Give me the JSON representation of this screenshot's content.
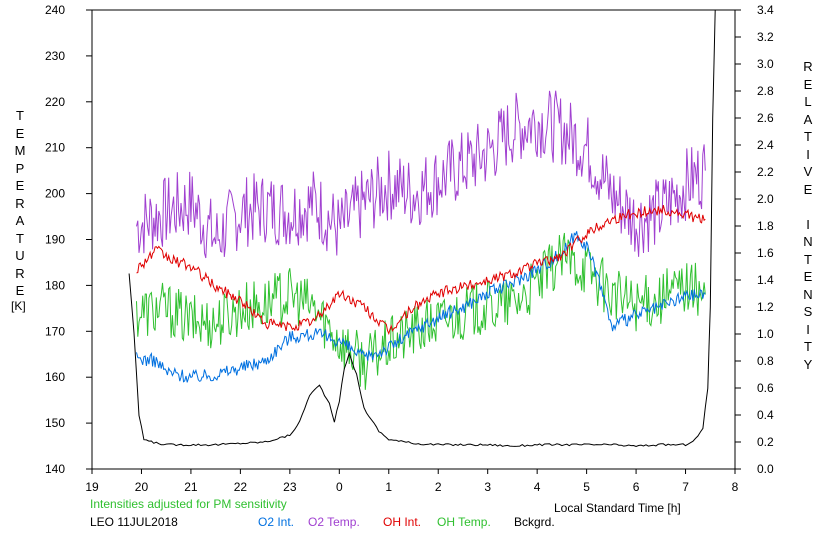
{
  "chart_data": {
    "type": "line",
    "ylabel_left": "TEMPERATURE",
    "ylabel_left_unit": "[K]",
    "ylabel_right": "RELATIVE INTENSITY",
    "xlabel": "Local Standard Time [h]",
    "note": "Intensities adjusted for PM sensitivity",
    "station": "LEO 11JUL2018",
    "ylim_left": [
      140,
      240
    ],
    "ylim_right": [
      0.0,
      3.4
    ],
    "x_range_hours": [
      19,
      32
    ],
    "x_tick_labels": [
      "19",
      "20",
      "21",
      "22",
      "23",
      "0",
      "1",
      "2",
      "3",
      "4",
      "5",
      "6",
      "7",
      "8"
    ],
    "y_left_ticks": [
      "140",
      "150",
      "160",
      "170",
      "180",
      "190",
      "200",
      "210",
      "220",
      "230",
      "240"
    ],
    "y_right_ticks": [
      "0.0",
      "0.2",
      "0.4",
      "0.6",
      "0.8",
      "1.0",
      "1.2",
      "1.4",
      "1.6",
      "1.8",
      "2.0",
      "2.2",
      "2.4",
      "2.6",
      "2.8",
      "3.0",
      "3.2",
      "3.4"
    ],
    "legend": [
      {
        "name": "O2 Int.",
        "color": "#0070e0"
      },
      {
        "name": "O2 Temp.",
        "color": "#a040d0"
      },
      {
        "name": "OH Int.",
        "color": "#e00000"
      },
      {
        "name": "OH Temp.",
        "color": "#30c030"
      },
      {
        "name": "Bckgrd.",
        "color": "#000000"
      }
    ],
    "series": [
      {
        "name": "O2 Temp.",
        "axis": "left",
        "color": "#a040d0",
        "x": [
          19.9,
          20.5,
          21.0,
          21.5,
          22.0,
          22.5,
          23.0,
          23.5,
          24.0,
          24.5,
          25.0,
          25.5,
          26.0,
          26.5,
          27.0,
          27.5,
          28.0,
          28.5,
          29.0,
          29.5,
          30.0,
          30.5,
          31.0,
          31.4
        ],
        "y": [
          193,
          196,
          198,
          190,
          196,
          197,
          196,
          198,
          192,
          198,
          202,
          200,
          203,
          206,
          209,
          214,
          216,
          214,
          210,
          200,
          194,
          196,
          202,
          205
        ]
      },
      {
        "name": "OH Temp.",
        "axis": "left",
        "color": "#30c030",
        "x": [
          19.9,
          20.5,
          21.0,
          21.5,
          22.0,
          22.5,
          23.0,
          23.5,
          24.0,
          24.5,
          25.0,
          25.5,
          26.0,
          26.5,
          27.0,
          27.5,
          28.0,
          28.5,
          29.0,
          29.5,
          30.0,
          30.5,
          31.0,
          31.4
        ],
        "y": [
          174,
          175,
          172,
          172,
          175,
          176,
          178,
          175,
          168,
          163,
          167,
          170,
          172,
          174,
          175,
          176,
          180,
          186,
          184,
          178,
          176,
          177,
          180,
          178
        ]
      },
      {
        "name": "O2 Int.",
        "axis": "right",
        "color": "#0070e0",
        "x": [
          19.9,
          20.3,
          20.5,
          21.0,
          21.5,
          22.0,
          22.5,
          23.0,
          23.5,
          24.0,
          24.5,
          25.0,
          25.5,
          26.0,
          26.5,
          27.0,
          27.5,
          28.0,
          28.5,
          28.8,
          29.0,
          29.3,
          29.5,
          30.0,
          30.5,
          31.0,
          31.4
        ],
        "y": [
          0.82,
          0.8,
          0.72,
          0.68,
          0.7,
          0.75,
          0.8,
          0.98,
          1.0,
          0.95,
          0.82,
          0.9,
          1.02,
          1.12,
          1.2,
          1.3,
          1.38,
          1.48,
          1.6,
          1.75,
          1.65,
          1.35,
          1.05,
          1.14,
          1.2,
          1.28,
          1.3
        ]
      },
      {
        "name": "OH Int.",
        "axis": "right",
        "color": "#e00000",
        "x": [
          19.9,
          20.3,
          20.6,
          21.0,
          21.5,
          22.0,
          22.5,
          23.0,
          23.5,
          24.0,
          24.5,
          25.0,
          25.5,
          26.0,
          26.5,
          27.0,
          27.5,
          28.0,
          28.5,
          29.0,
          29.5,
          30.0,
          30.5,
          31.0,
          31.4
        ],
        "y": [
          1.48,
          1.62,
          1.55,
          1.5,
          1.35,
          1.25,
          1.08,
          1.05,
          1.1,
          1.3,
          1.2,
          1.02,
          1.2,
          1.3,
          1.35,
          1.4,
          1.45,
          1.52,
          1.58,
          1.75,
          1.85,
          1.9,
          1.92,
          1.88,
          1.85
        ]
      },
      {
        "name": "Bckgrd.",
        "axis": "right",
        "color": "#000000",
        "x": [
          19.75,
          19.85,
          19.95,
          20.05,
          20.2,
          20.5,
          21.0,
          21.5,
          22.0,
          22.5,
          23.0,
          23.2,
          23.4,
          23.6,
          23.8,
          23.9,
          24.0,
          24.1,
          24.2,
          24.35,
          24.5,
          24.8,
          25.0,
          25.5,
          26.0,
          26.5,
          27.0,
          27.5,
          28.0,
          28.5,
          29.0,
          29.5,
          30.0,
          30.5,
          31.0,
          31.2,
          31.35,
          31.45,
          31.5,
          31.55,
          31.6
        ],
        "y": [
          1.45,
          1.0,
          0.4,
          0.22,
          0.2,
          0.18,
          0.18,
          0.18,
          0.19,
          0.2,
          0.25,
          0.35,
          0.55,
          0.62,
          0.48,
          0.35,
          0.5,
          0.75,
          0.85,
          0.7,
          0.45,
          0.28,
          0.22,
          0.19,
          0.18,
          0.18,
          0.18,
          0.17,
          0.18,
          0.18,
          0.18,
          0.18,
          0.17,
          0.18,
          0.18,
          0.22,
          0.3,
          0.6,
          1.2,
          2.6,
          3.4
        ]
      }
    ]
  }
}
